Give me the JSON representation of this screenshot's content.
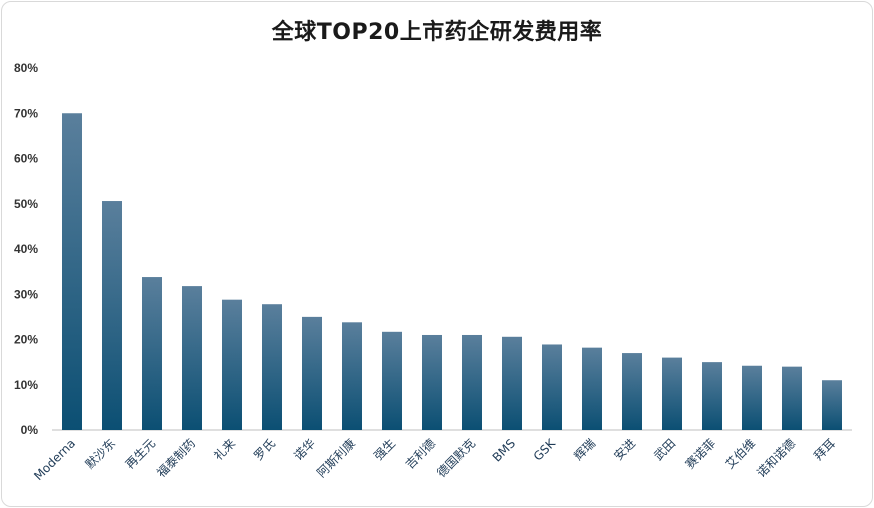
{
  "chart_data": {
    "type": "bar",
    "title": "全球TOP20上市药企研发费用率",
    "categories": [
      "Moderna",
      "默沙东",
      "再生元",
      "福泰制药",
      "礼来",
      "罗氏",
      "诺华",
      "阿斯利康",
      "强生",
      "吉利德",
      "德国默克",
      "BMS",
      "GSK",
      "辉瑞",
      "安进",
      "武田",
      "赛诺菲",
      "艾伯维",
      "诺和诺德",
      "拜耳"
    ],
    "values": [
      70,
      50.6,
      33.8,
      31.8,
      28.8,
      27.8,
      25,
      23.8,
      21.7,
      21,
      21,
      20.6,
      18.9,
      18.2,
      17,
      16,
      15,
      14.2,
      14,
      11
    ],
    "ylim": [
      0,
      80
    ],
    "yticks": [
      0,
      10,
      20,
      30,
      40,
      50,
      60,
      70,
      80
    ],
    "ytick_format": "percent",
    "grid": false,
    "bar_color_top": "#5a7f9c",
    "bar_color_bottom": "#0b4f73"
  }
}
